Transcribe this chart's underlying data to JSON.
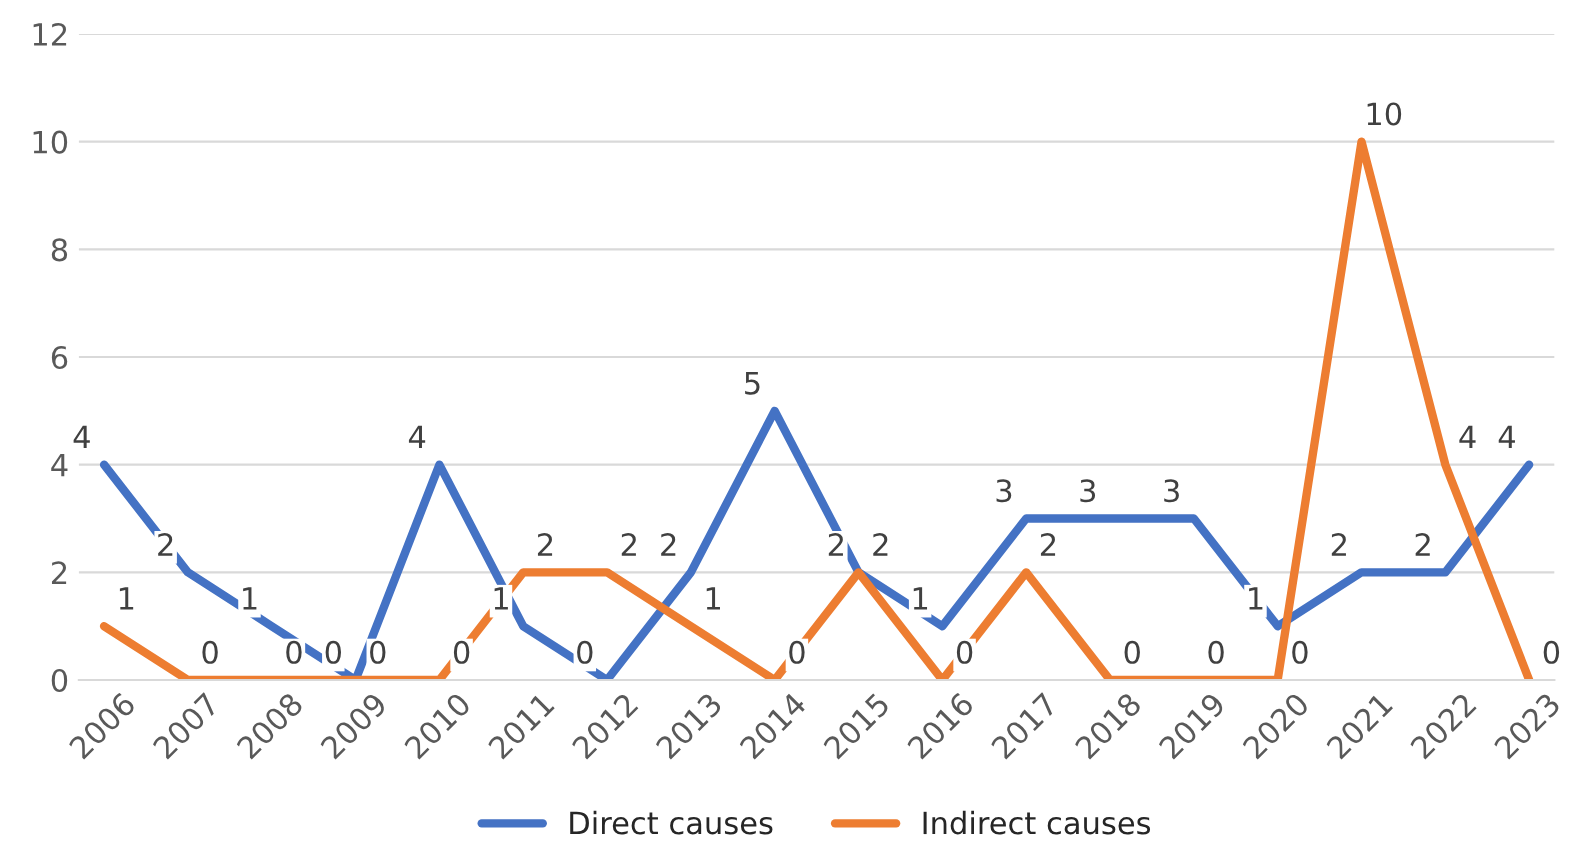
{
  "chart_data": {
    "type": "line",
    "categories": [
      "2006",
      "2007",
      "2008",
      "2009",
      "2010",
      "2011",
      "2012",
      "2013",
      "2014",
      "2015",
      "2016",
      "2017",
      "2018",
      "2019",
      "2020",
      "2021",
      "2022",
      "2023"
    ],
    "series": [
      {
        "name": "Direct causes",
        "color": "#4472c4",
        "values": [
          4,
          2,
          1,
          0,
          4,
          1,
          0,
          2,
          5,
          2,
          1,
          3,
          3,
          3,
          1,
          2,
          2,
          4
        ]
      },
      {
        "name": "Indirect causes",
        "color": "#ed7d31",
        "values": [
          1,
          0,
          0,
          0,
          0,
          2,
          2,
          1,
          0,
          2,
          0,
          2,
          0,
          0,
          0,
          10,
          4,
          0
        ]
      }
    ],
    "ylim": [
      0,
      12
    ],
    "yticks": [
      0,
      2,
      4,
      6,
      8,
      10,
      12
    ],
    "grid": "y",
    "legend": "bottom",
    "data_labels": true,
    "marker": "none",
    "line_style": "solid"
  }
}
